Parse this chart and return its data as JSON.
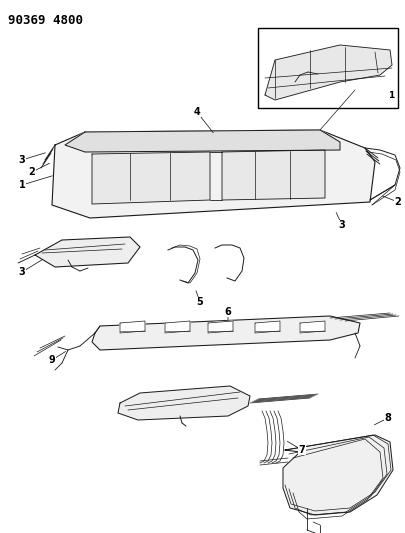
{
  "title": "90369 4800",
  "background_color": "#ffffff",
  "line_color": "#1a1a1a",
  "text_color": "#000000",
  "title_fontsize": 9,
  "label_fontsize": 7,
  "fig_width": 4.06,
  "fig_height": 5.33,
  "dpi": 100
}
